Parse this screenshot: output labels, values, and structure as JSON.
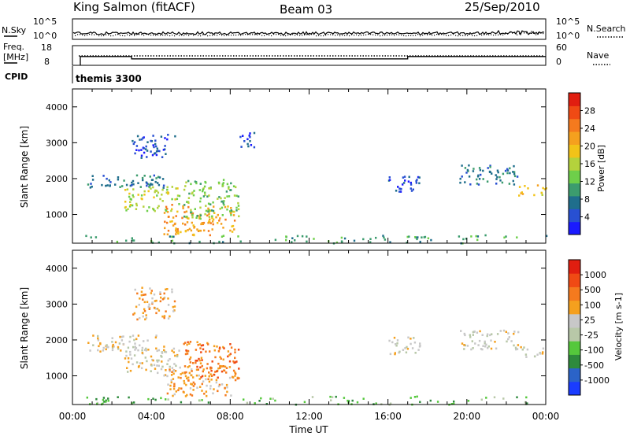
{
  "header": {
    "station": "King Salmon (fitACF)",
    "beam": "Beam 03",
    "date": "25/Sep/2010"
  },
  "strip_labels": {
    "nsky": "N.Sky",
    "nsky_ticks": [
      "10^5",
      "10^0"
    ],
    "nsearch": "N.Search",
    "nsearch_ticks": [
      "10^5",
      "10^0"
    ],
    "freq_label_1": "Freq.",
    "freq_label_2": "[MHz]",
    "freq_ticks": [
      "18",
      "8"
    ],
    "nave": "Nave",
    "nave_ticks": [
      "60",
      "0"
    ],
    "cpid": "CPID",
    "cpid_value": "themis 3300"
  },
  "chart_data": [
    {
      "type": "heatmap",
      "name": "power",
      "ylabel": "Slant Range [km]",
      "yticks": [
        "1000",
        "2000",
        "3000",
        "4000"
      ],
      "ylim": [
        200,
        4500
      ],
      "xlim_hours": [
        0,
        24
      ],
      "colorbar_label": "Power [dB]",
      "colorbar_ticks": [
        "4",
        "8",
        "12",
        "16",
        "20",
        "24",
        "28"
      ],
      "colorbar_colors": [
        "#1a1aff",
        "#2850d2",
        "#1f6e8c",
        "#3c9c6e",
        "#6ecf4a",
        "#b4d23c",
        "#f2c318",
        "#f5a01e",
        "#f57a1e",
        "#f04a14",
        "#e11e10"
      ],
      "regions": [
        {
          "t": [
            0.75,
            4.6
          ],
          "r": [
            1750,
            2150
          ],
          "level": 2
        },
        {
          "t": [
            2.6,
            5.4
          ],
          "r": [
            1100,
            1800
          ],
          "level": 5
        },
        {
          "t": [
            4.6,
            8.3
          ],
          "r": [
            450,
            1300
          ],
          "level": 7
        },
        {
          "t": [
            5.6,
            8.4
          ],
          "r": [
            900,
            2000
          ],
          "level": 4
        },
        {
          "t": [
            3.0,
            5.2
          ],
          "r": [
            2600,
            3250
          ],
          "level": 1
        },
        {
          "t": [
            8.2,
            9.2
          ],
          "r": [
            2900,
            3300
          ],
          "level": 1
        },
        {
          "t": [
            16.0,
            17.6
          ],
          "r": [
            1600,
            2100
          ],
          "level": 1
        },
        {
          "t": [
            19.6,
            22.6
          ],
          "r": [
            1850,
            2400
          ],
          "level": 2
        },
        {
          "t": [
            22.6,
            24.0
          ],
          "r": [
            1550,
            1850
          ],
          "level": 6
        },
        {
          "t": [
            0.3,
            24.0
          ],
          "r": [
            220,
            450
          ],
          "level": 3
        }
      ]
    },
    {
      "type": "heatmap",
      "name": "velocity",
      "ylabel": "Slant Range [km]",
      "yticks": [
        "1000",
        "2000",
        "3000",
        "4000"
      ],
      "ylim": [
        200,
        4500
      ],
      "xlim_hours": [
        0,
        24
      ],
      "colorbar_label": "Velocity [m s-1]",
      "colorbar_ticks": [
        "1000",
        "500",
        "100",
        "25",
        "-25",
        "-100",
        "-500",
        "-1000"
      ],
      "colorbar_colors": [
        "#1a3cff",
        "#2b63c8",
        "#2e8a3c",
        "#55c83c",
        "#b8c8a8",
        "#c8c8c8",
        "#f5a01e",
        "#f57a1e",
        "#f04a14",
        "#e11e10"
      ],
      "regions": [
        {
          "t": [
            0.75,
            4.6
          ],
          "r": [
            1700,
            2150
          ],
          "level": 5
        },
        {
          "t": [
            2.6,
            5.4
          ],
          "r": [
            1100,
            1800
          ],
          "level": 5
        },
        {
          "t": [
            4.6,
            8.3
          ],
          "r": [
            450,
            1300
          ],
          "level": 6
        },
        {
          "t": [
            5.6,
            8.4
          ],
          "r": [
            900,
            2000
          ],
          "level": 7
        },
        {
          "t": [
            3.0,
            5.2
          ],
          "r": [
            2600,
            3500
          ],
          "level": 6
        },
        {
          "t": [
            16.0,
            17.6
          ],
          "r": [
            1600,
            2100
          ],
          "level": 5
        },
        {
          "t": [
            19.6,
            22.6
          ],
          "r": [
            1750,
            2300
          ],
          "level": 5
        },
        {
          "t": [
            22.6,
            24.0
          ],
          "r": [
            1550,
            1850
          ],
          "level": 5
        },
        {
          "t": [
            0.3,
            24.0
          ],
          "r": [
            220,
            450
          ],
          "level": 3
        }
      ]
    }
  ],
  "xaxis": {
    "ticks": [
      "00:00",
      "04:00",
      "08:00",
      "12:00",
      "16:00",
      "20:00",
      "00:00"
    ],
    "label": "Time UT"
  },
  "freq_steps": [
    {
      "t": [
        0.4,
        3.0
      ],
      "f": 12.5
    },
    {
      "t": [
        3.0,
        17.0
      ],
      "f": 11.3
    },
    {
      "t": [
        17.0,
        24.0
      ],
      "f": 12.5
    }
  ]
}
